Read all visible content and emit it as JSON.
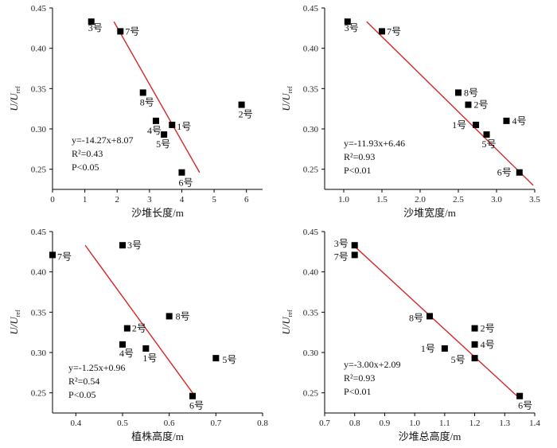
{
  "chart_data": [
    {
      "type": "scatter",
      "ylabel": "U/U_ref",
      "xlabel": "沙堆长度/m",
      "xlim": [
        0,
        6.5
      ],
      "ylim": [
        0.225,
        0.45
      ],
      "xticks": [
        0,
        1,
        2,
        3,
        4,
        5,
        6
      ],
      "yticks": [
        0.25,
        0.3,
        0.35,
        0.4,
        0.45
      ],
      "points": [
        {
          "label": "3号",
          "x": 1.2,
          "y": 0.433
        },
        {
          "label": "7号",
          "x": 2.1,
          "y": 0.421
        },
        {
          "label": "8号",
          "x": 2.8,
          "y": 0.345
        },
        {
          "label": "4号",
          "x": 3.2,
          "y": 0.31
        },
        {
          "label": "1号",
          "x": 3.7,
          "y": 0.305
        },
        {
          "label": "5号",
          "x": 3.45,
          "y": 0.293
        },
        {
          "label": "2号",
          "x": 5.85,
          "y": 0.33
        },
        {
          "label": "6号",
          "x": 4.0,
          "y": 0.246
        }
      ],
      "fit": {
        "x1": 1.9,
        "y1": 0.433,
        "x2": 4.55,
        "y2": 0.246,
        "color": "#d62728"
      },
      "equation": [
        "y=-14.27x+8.07",
        "R²=0.43",
        "P<0.05"
      ]
    },
    {
      "type": "scatter",
      "ylabel": "U/U_ref",
      "xlabel": "沙堆宽度/m",
      "xlim": [
        0.75,
        3.5
      ],
      "ylim": [
        0.225,
        0.45
      ],
      "xticks": [
        1.0,
        1.5,
        2.0,
        2.5,
        3.0,
        3.5
      ],
      "yticks": [
        0.25,
        0.3,
        0.35,
        0.4,
        0.45
      ],
      "points": [
        {
          "label": "3号",
          "x": 1.05,
          "y": 0.433
        },
        {
          "label": "7号",
          "x": 1.5,
          "y": 0.421
        },
        {
          "label": "8号",
          "x": 2.5,
          "y": 0.345
        },
        {
          "label": "2号",
          "x": 2.63,
          "y": 0.33
        },
        {
          "label": "1号",
          "x": 2.73,
          "y": 0.305
        },
        {
          "label": "4号",
          "x": 3.13,
          "y": 0.31
        },
        {
          "label": "5号",
          "x": 2.87,
          "y": 0.293
        },
        {
          "label": "6号",
          "x": 3.3,
          "y": 0.246
        }
      ],
      "fit": {
        "x1": 1.3,
        "y1": 0.433,
        "x2": 3.48,
        "y2": 0.23,
        "color": "#d62728"
      },
      "equation": [
        "y=-11.93x+6.46",
        "R²=0.93",
        "P<0.01"
      ]
    },
    {
      "type": "scatter",
      "ylabel": "U/U_ref",
      "xlabel": "植株高度/m",
      "xlim": [
        0.35,
        0.8
      ],
      "ylim": [
        0.225,
        0.45
      ],
      "xticks": [
        0.4,
        0.5,
        0.6,
        0.7,
        0.8
      ],
      "yticks": [
        0.25,
        0.3,
        0.35,
        0.4,
        0.45
      ],
      "points": [
        {
          "label": "7号",
          "x": 0.35,
          "y": 0.421
        },
        {
          "label": "3号",
          "x": 0.5,
          "y": 0.433
        },
        {
          "label": "8号",
          "x": 0.6,
          "y": 0.345
        },
        {
          "label": "2号",
          "x": 0.51,
          "y": 0.33
        },
        {
          "label": "4号",
          "x": 0.5,
          "y": 0.31
        },
        {
          "label": "1号",
          "x": 0.55,
          "y": 0.305
        },
        {
          "label": "5号",
          "x": 0.7,
          "y": 0.293
        },
        {
          "label": "6号",
          "x": 0.65,
          "y": 0.246
        }
      ],
      "fit": {
        "x1": 0.42,
        "y1": 0.433,
        "x2": 0.655,
        "y2": 0.246,
        "color": "#d62728"
      },
      "equation": [
        "y=-1.25x+0.96",
        "R²=0.54",
        "P<0.05"
      ]
    },
    {
      "type": "scatter",
      "ylabel": "U/U_ref",
      "xlabel": "沙堆总高度/m",
      "xlim": [
        0.7,
        1.4
      ],
      "ylim": [
        0.225,
        0.45
      ],
      "xticks": [
        0.7,
        0.8,
        0.9,
        1.0,
        1.1,
        1.2,
        1.3,
        1.4
      ],
      "yticks": [
        0.25,
        0.3,
        0.35,
        0.4,
        0.45
      ],
      "points": [
        {
          "label": "3号",
          "x": 0.8,
          "y": 0.433
        },
        {
          "label": "7号",
          "x": 0.8,
          "y": 0.421
        },
        {
          "label": "8号",
          "x": 1.05,
          "y": 0.345
        },
        {
          "label": "2号",
          "x": 1.2,
          "y": 0.33
        },
        {
          "label": "4号",
          "x": 1.2,
          "y": 0.31
        },
        {
          "label": "1号",
          "x": 1.1,
          "y": 0.305
        },
        {
          "label": "5号",
          "x": 1.2,
          "y": 0.293
        },
        {
          "label": "6号",
          "x": 1.35,
          "y": 0.246
        }
      ],
      "fit": {
        "x1": 0.79,
        "y1": 0.435,
        "x2": 1.35,
        "y2": 0.243,
        "color": "#d62728"
      },
      "equation": [
        "y=-3.00x+2.09",
        "R²=0.93",
        "P<0.01"
      ]
    }
  ]
}
